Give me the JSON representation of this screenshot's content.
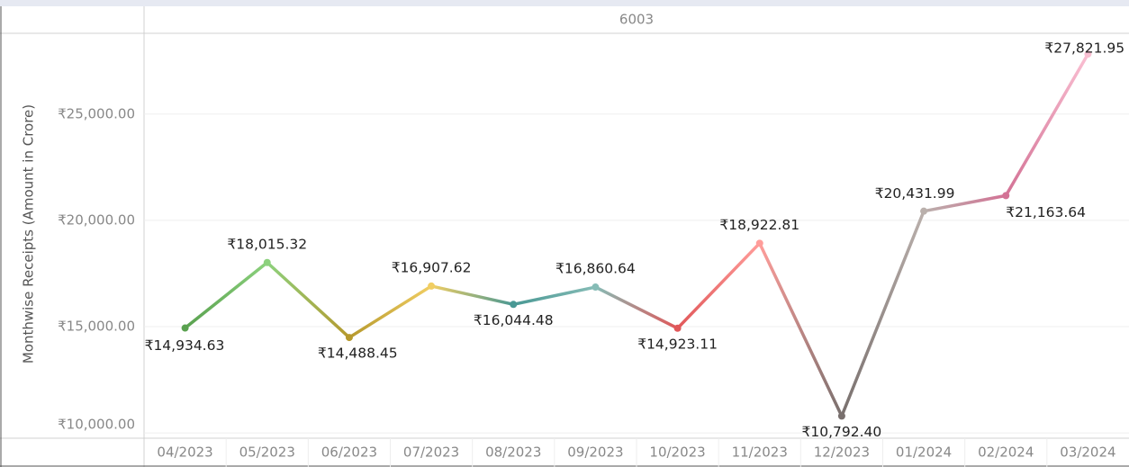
{
  "chart_data": {
    "type": "line",
    "header": "6003",
    "y_label": "Monthwise Receipts (Amount in Crore)",
    "categories": [
      "04/2023",
      "05/2023",
      "06/2023",
      "07/2023",
      "08/2023",
      "09/2023",
      "10/2023",
      "11/2023",
      "12/2023",
      "01/2024",
      "02/2024",
      "03/2024"
    ],
    "values": [
      14934.63,
      18015.32,
      14488.45,
      16907.62,
      16044.48,
      16860.64,
      14923.11,
      18922.81,
      10792.4,
      20431.99,
      21163.64,
      27821.95
    ],
    "value_labels": [
      "₹14,934.63",
      "₹18,015.32",
      "₹14,488.45",
      "₹16,907.62",
      "₹16,044.48",
      "₹16,860.64",
      "₹14,923.11",
      "₹18,922.81",
      "₹10,792.40",
      "₹20,431.99",
      "₹21,163.64",
      "₹27,821.95"
    ],
    "colors": [
      "#59a14f",
      "#8cd17d",
      "#b6992d",
      "#f1ce63",
      "#499894",
      "#86bcb6",
      "#e15759",
      "#ff9d9a",
      "#79706e",
      "#bab0ac",
      "#d37295",
      "#fabfd2"
    ],
    "ylim": [
      9750,
      28800
    ],
    "yticks": [
      {
        "value": 10000,
        "label": "₹10,000.00"
      },
      {
        "value": 15000,
        "label": "₹15,000.00"
      },
      {
        "value": 20000,
        "label": "₹20,000.00"
      },
      {
        "value": 25000,
        "label": "₹25,000.00"
      }
    ],
    "grid": true
  }
}
